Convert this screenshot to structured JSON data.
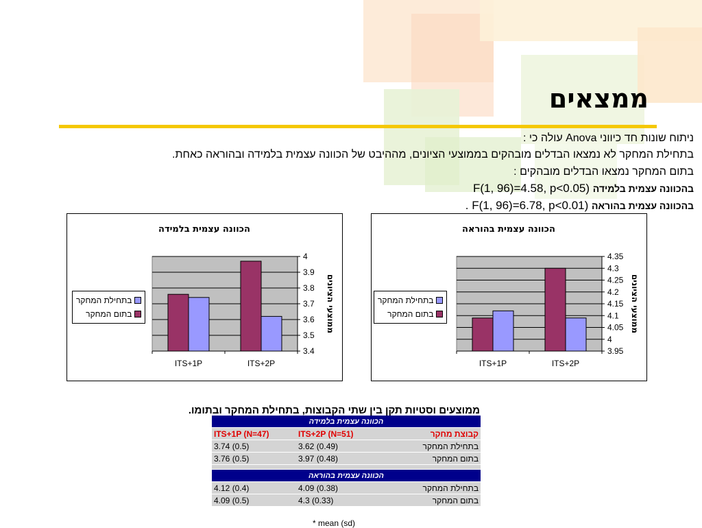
{
  "slide": {
    "title": "ממצאים",
    "lines": {
      "l1": "ניתוח שונות חד כיווני Anova עולה כי :",
      "l2": "בתחילת המחקר לא נמצאו הבדלים מובהקים בממוצעי הציונים, מההיבט של הכוונה עצמית בלמידה ובהוראה כאחת.",
      "l3": "בתום המחקר נמצאו הבדלים מובהקים :",
      "l4_label": "בהכוונה עצמית בלמידה",
      "l4_stat": "F(1, 96)=4.58, p<0.05)",
      "l5_label": "בהכוונה עצמית בהוראה",
      "l5_stat": "F(1, 96)=6.78, p<0.01)",
      "l5_end": "."
    }
  },
  "legend": {
    "start": "בתחילת המחקר",
    "end": "בתום המחקר"
  },
  "colors": {
    "start": "#9999ff",
    "end": "#993366",
    "plot_bg": "#c0c0c0",
    "rule": "#f5c800",
    "table_header": "#00008b"
  },
  "chart_data": [
    {
      "type": "bar",
      "title": "הכוונה עצמית בלמידה",
      "ylabel": "ממוצעי הציונים",
      "categories": [
        "ITS+1P",
        "ITS+2P"
      ],
      "series": [
        {
          "name": "בתחילת המחקר",
          "values": [
            3.74,
            3.62
          ]
        },
        {
          "name": "בתום המחקר",
          "values": [
            3.76,
            3.97
          ]
        }
      ],
      "ylim": [
        3.4,
        4
      ],
      "yticks": [
        "3.4",
        "3.5",
        "3.6",
        "3.7",
        "3.8",
        "3.9",
        "4"
      ],
      "grid": true,
      "legend_position": "left"
    },
    {
      "type": "bar",
      "title": "הכוונה עצמית בהוראה",
      "ylabel": "ממוצעי הציונים",
      "categories": [
        "ITS+1P",
        "ITS+2P"
      ],
      "series": [
        {
          "name": "בתחילת המחקר",
          "values": [
            4.12,
            4.09
          ]
        },
        {
          "name": "בתום המחקר",
          "values": [
            4.09,
            4.3
          ]
        }
      ],
      "ylim": [
        3.95,
        4.35
      ],
      "yticks": [
        "3.95",
        "4",
        "4.05",
        "4.1",
        "4.15",
        "4.2",
        "4.25",
        "4.3",
        "4.35"
      ],
      "grid": true,
      "legend_position": "left"
    }
  ],
  "table": {
    "title": "ממוצעים וסטיות תקן בין שתי הקבוצות, בתחילת המחקר ובתומו.",
    "section1": "הכוונה עצמית בלמידה",
    "section2": "הכוונה עצמית בהוראה",
    "group_label": "קבוצת מחקר",
    "col1": "ITS+1P (N=47)",
    "col2": "ITS+2P (N=51)",
    "rows1": [
      {
        "label": "בתחילת המחקר",
        "c1": "3.74 (0.5)",
        "c2": "3.62 (0.49)"
      },
      {
        "label": "בתום המחקר",
        "c1": "3.76 (0.5)",
        "c2": "3.97 (0.48)"
      }
    ],
    "rows2": [
      {
        "label": "בתחילת המחקר",
        "c1": "4.12 (0.4)",
        "c2": "4.09 (0.38)"
      },
      {
        "label": "בתום המחקר",
        "c1": "4.09 (0.5)",
        "c2": "4.3 (0.33)"
      }
    ],
    "footnote": "* mean (sd)"
  }
}
